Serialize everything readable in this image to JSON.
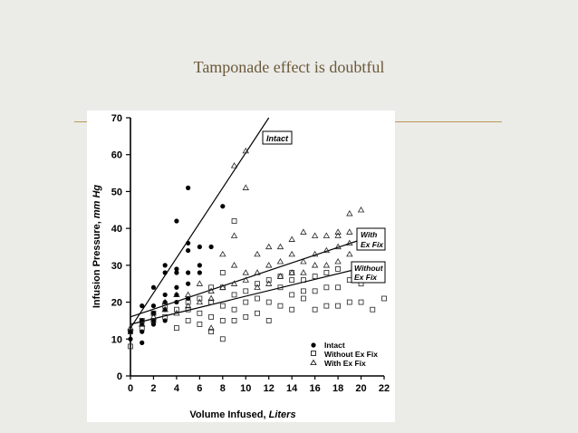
{
  "slide": {
    "title": "Tamponade effect is doubtful"
  },
  "colors": {
    "title": "#6b5a3a",
    "rule": "#b99a55",
    "background": "#ebebe8"
  },
  "chart_data": {
    "type": "scatter",
    "xlabel_main": "Volume Infused, ",
    "xlabel_unit": "Liters",
    "ylabel_main": "Infusion Pressure, ",
    "ylabel_unit": "mm Hg",
    "xlim": [
      0,
      22
    ],
    "ylim": [
      0,
      70
    ],
    "x_ticks": [
      "0",
      "2",
      "4",
      "6",
      "8",
      "10",
      "12",
      "14",
      "16",
      "18",
      "20",
      "22"
    ],
    "y_ticks": [
      "0",
      "10",
      "20",
      "30",
      "40",
      "50",
      "60",
      "70"
    ],
    "line_labels": {
      "intact": "Intact",
      "with_ex_fix_1": "With",
      "with_ex_fix_2": "Ex Fix",
      "without_ex_fix_1": "Without",
      "without_ex_fix_2": "Ex Fix"
    },
    "legend": {
      "intact": "Intact",
      "without": "Without Ex Fix",
      "with": "With Ex Fix"
    },
    "series": [
      {
        "name": "Intact",
        "marker": "filled-circle",
        "points": [
          [
            0,
            10
          ],
          [
            0,
            12
          ],
          [
            1,
            9
          ],
          [
            1,
            12
          ],
          [
            1,
            14
          ],
          [
            1,
            15
          ],
          [
            1,
            19
          ],
          [
            2,
            14
          ],
          [
            2,
            15
          ],
          [
            2,
            17
          ],
          [
            2,
            19
          ],
          [
            2,
            24
          ],
          [
            3,
            15
          ],
          [
            3,
            18
          ],
          [
            3,
            20
          ],
          [
            3,
            22
          ],
          [
            3,
            28
          ],
          [
            3,
            30
          ],
          [
            4,
            20
          ],
          [
            4,
            22
          ],
          [
            4,
            24
          ],
          [
            4,
            28
          ],
          [
            4,
            29
          ],
          [
            4,
            42
          ],
          [
            5,
            21
          ],
          [
            5,
            25
          ],
          [
            5,
            28
          ],
          [
            5,
            34
          ],
          [
            5,
            36
          ],
          [
            5,
            51
          ],
          [
            6,
            28
          ],
          [
            6,
            30
          ],
          [
            6,
            35
          ],
          [
            7,
            35
          ],
          [
            8,
            46
          ]
        ]
      },
      {
        "name": "Without Ex Fix",
        "marker": "open-square",
        "points": [
          [
            0,
            8
          ],
          [
            0,
            12
          ],
          [
            1,
            13
          ],
          [
            1,
            15
          ],
          [
            2,
            15
          ],
          [
            2,
            17
          ],
          [
            3,
            16
          ],
          [
            3,
            19
          ],
          [
            4,
            13
          ],
          [
            4,
            18
          ],
          [
            5,
            15
          ],
          [
            5,
            18
          ],
          [
            5,
            20
          ],
          [
            6,
            14
          ],
          [
            6,
            17
          ],
          [
            6,
            21
          ],
          [
            7,
            12
          ],
          [
            7,
            16
          ],
          [
            7,
            20
          ],
          [
            7,
            24
          ],
          [
            8,
            10
          ],
          [
            8,
            15
          ],
          [
            8,
            19
          ],
          [
            8,
            24
          ],
          [
            8,
            28
          ],
          [
            9,
            15
          ],
          [
            9,
            18
          ],
          [
            9,
            22
          ],
          [
            9,
            42
          ],
          [
            10,
            16
          ],
          [
            10,
            20
          ],
          [
            10,
            23
          ],
          [
            11,
            17
          ],
          [
            11,
            21
          ],
          [
            11,
            25
          ],
          [
            12,
            15
          ],
          [
            12,
            20
          ],
          [
            12,
            26
          ],
          [
            13,
            19
          ],
          [
            13,
            24
          ],
          [
            13,
            27
          ],
          [
            14,
            18
          ],
          [
            14,
            22
          ],
          [
            14,
            26
          ],
          [
            14,
            28
          ],
          [
            15,
            21
          ],
          [
            15,
            23
          ],
          [
            15,
            26
          ],
          [
            16,
            18
          ],
          [
            16,
            23
          ],
          [
            16,
            27
          ],
          [
            17,
            19
          ],
          [
            17,
            24
          ],
          [
            17,
            28
          ],
          [
            18,
            19
          ],
          [
            18,
            24
          ],
          [
            18,
            29
          ],
          [
            19,
            20
          ],
          [
            19,
            26
          ],
          [
            20,
            20
          ],
          [
            20,
            25
          ],
          [
            21,
            18
          ],
          [
            22,
            21
          ]
        ]
      },
      {
        "name": "With Ex Fix",
        "marker": "open-triangle",
        "points": [
          [
            0,
            13
          ],
          [
            1,
            14
          ],
          [
            2,
            16
          ],
          [
            3,
            18
          ],
          [
            3,
            20
          ],
          [
            4,
            17
          ],
          [
            4,
            22
          ],
          [
            5,
            19
          ],
          [
            5,
            22
          ],
          [
            6,
            20
          ],
          [
            6,
            25
          ],
          [
            7,
            13
          ],
          [
            7,
            21
          ],
          [
            7,
            23
          ],
          [
            8,
            24
          ],
          [
            8,
            33
          ],
          [
            9,
            25
          ],
          [
            9,
            30
          ],
          [
            9,
            38
          ],
          [
            9,
            57
          ],
          [
            10,
            26
          ],
          [
            10,
            28
          ],
          [
            10,
            51
          ],
          [
            10,
            61
          ],
          [
            11,
            24
          ],
          [
            11,
            28
          ],
          [
            11,
            33
          ],
          [
            12,
            25
          ],
          [
            12,
            30
          ],
          [
            12,
            35
          ],
          [
            13,
            27
          ],
          [
            13,
            31
          ],
          [
            13,
            35
          ],
          [
            14,
            28
          ],
          [
            14,
            33
          ],
          [
            14,
            37
          ],
          [
            15,
            28
          ],
          [
            15,
            31
          ],
          [
            15,
            39
          ],
          [
            16,
            30
          ],
          [
            16,
            33
          ],
          [
            16,
            38
          ],
          [
            17,
            30
          ],
          [
            17,
            34
          ],
          [
            17,
            38
          ],
          [
            18,
            31
          ],
          [
            18,
            35
          ],
          [
            18,
            38
          ],
          [
            18,
            39
          ],
          [
            19,
            33
          ],
          [
            19,
            36
          ],
          [
            19,
            39
          ],
          [
            19,
            44
          ],
          [
            20,
            35
          ],
          [
            20,
            37
          ],
          [
            20,
            45
          ],
          [
            21,
            36
          ],
          [
            21,
            39
          ]
        ]
      }
    ],
    "regression_lines": [
      {
        "name": "Intact",
        "from": [
          0,
          13
        ],
        "to": [
          12,
          70
        ]
      },
      {
        "name": "With Ex Fix",
        "from": [
          0,
          16
        ],
        "to": [
          21,
          38
        ]
      },
      {
        "name": "Without Ex Fix",
        "from": [
          0,
          14
        ],
        "to": [
          21,
          30
        ]
      }
    ]
  }
}
